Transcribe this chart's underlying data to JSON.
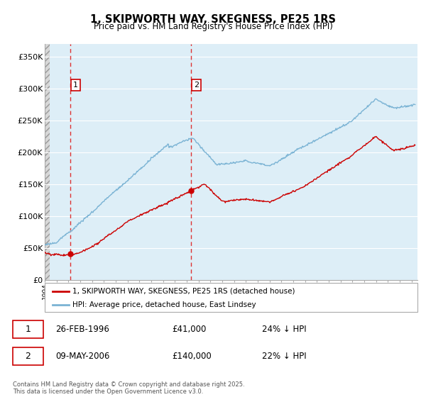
{
  "title": "1, SKIPWORTH WAY, SKEGNESS, PE25 1RS",
  "subtitle": "Price paid vs. HM Land Registry's House Price Index (HPI)",
  "xlim_start": 1994.0,
  "xlim_end": 2025.5,
  "ylim": [
    0,
    370000
  ],
  "yticks": [
    0,
    50000,
    100000,
    150000,
    200000,
    250000,
    300000,
    350000
  ],
  "ytick_labels": [
    "£0",
    "£50K",
    "£100K",
    "£150K",
    "£200K",
    "£250K",
    "£300K",
    "£350K"
  ],
  "hpi_color": "#7ab3d4",
  "price_color": "#cc0000",
  "sale1_date": 1996.15,
  "sale1_price": 41000,
  "sale2_date": 2006.36,
  "sale2_price": 140000,
  "legend_label1": "1, SKIPWORTH WAY, SKEGNESS, PE25 1RS (detached house)",
  "legend_label2": "HPI: Average price, detached house, East Lindsey",
  "table_rows": [
    {
      "num": "1",
      "date": "26-FEB-1996",
      "price": "£41,000",
      "note": "24% ↓ HPI"
    },
    {
      "num": "2",
      "date": "09-MAY-2006",
      "price": "£140,000",
      "note": "22% ↓ HPI"
    }
  ],
  "footer": "Contains HM Land Registry data © Crown copyright and database right 2025.\nThis data is licensed under the Open Government Licence v3.0.",
  "plot_bg_color": "#ddeef7",
  "grid_color": "#ffffff",
  "hatch_color": "#c8c8c8"
}
